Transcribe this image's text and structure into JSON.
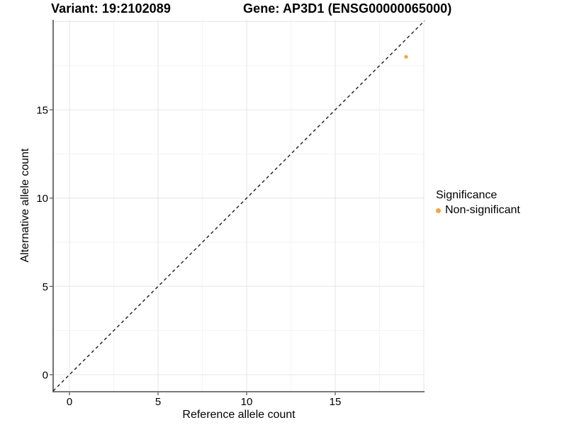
{
  "chart_data": {
    "type": "scatter",
    "title_left": "Variant: 19:2102089",
    "title_right": "Gene: AP3D1 (ENSG00000065000)",
    "xlabel": "Reference allele count",
    "ylabel": "Alternative allele count",
    "x_ticks": [
      0,
      5,
      10,
      15
    ],
    "y_ticks": [
      0,
      5,
      10,
      15
    ],
    "x_grid_major": [
      0,
      5,
      10,
      15,
      20
    ],
    "x_grid_minor": [
      2.5,
      7.5,
      12.5,
      17.5
    ],
    "y_grid_major": [
      0,
      5,
      10,
      15,
      20
    ],
    "y_grid_minor": [
      2.5,
      7.5,
      12.5,
      17.5
    ],
    "xlim": [
      -0.92,
      20.04
    ],
    "ylim": [
      -0.96,
      20.1
    ],
    "grid": true,
    "reference_line": {
      "type": "abline",
      "slope": 1,
      "intercept": 0,
      "style": "dashed",
      "color": "#1a1a1a"
    },
    "series": [
      {
        "name": "Non-significant",
        "color": "#F9A33C",
        "points": [
          {
            "x": 19,
            "y": 18
          }
        ]
      }
    ],
    "legend": {
      "title": "Significance",
      "position": "right",
      "items": [
        {
          "label": "Non-significant",
          "color": "#F9A33C"
        }
      ]
    }
  },
  "colors": {
    "background": "#FFFFFF",
    "grid_major": "#E7E7E7",
    "grid_minor": "#F2F2F2",
    "axis": "#4D4D4D",
    "text": "#000000",
    "point": "#F9A33C"
  }
}
